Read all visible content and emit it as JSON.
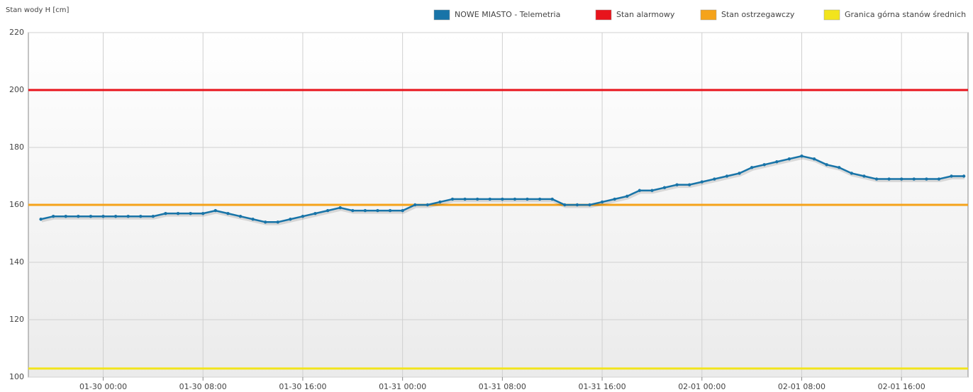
{
  "chart_data": {
    "type": "line",
    "y_label": "Stan wody H [cm]",
    "ylim": [
      100,
      220
    ],
    "yticks": [
      100,
      120,
      140,
      160,
      180,
      200,
      220
    ],
    "xlim": [
      "01-29 18:00",
      "02-01 21:20"
    ],
    "xticks": [
      "01-30 00:00",
      "01-30 08:00",
      "01-30 16:00",
      "01-31 00:00",
      "01-31 08:00",
      "01-31 16:00",
      "02-01 00:00",
      "02-01 08:00",
      "02-01 16:00"
    ],
    "grid": true,
    "legend": "top-right",
    "x": [
      "01-29 19:00",
      "01-29 20:00",
      "01-29 21:00",
      "01-29 22:00",
      "01-29 23:00",
      "01-30 00:00",
      "01-30 01:00",
      "01-30 02:00",
      "01-30 03:00",
      "01-30 04:00",
      "01-30 05:00",
      "01-30 06:00",
      "01-30 07:00",
      "01-30 08:00",
      "01-30 09:00",
      "01-30 10:00",
      "01-30 11:00",
      "01-30 12:00",
      "01-30 13:00",
      "01-30 14:00",
      "01-30 15:00",
      "01-30 16:00",
      "01-30 17:00",
      "01-30 18:00",
      "01-30 19:00",
      "01-30 20:00",
      "01-30 21:00",
      "01-30 22:00",
      "01-30 23:00",
      "01-31 00:00",
      "01-31 01:00",
      "01-31 02:00",
      "01-31 03:00",
      "01-31 04:00",
      "01-31 05:00",
      "01-31 06:00",
      "01-31 07:00",
      "01-31 08:00",
      "01-31 09:00",
      "01-31 10:00",
      "01-31 11:00",
      "01-31 12:00",
      "01-31 13:00",
      "01-31 14:00",
      "01-31 15:00",
      "01-31 16:00",
      "01-31 17:00",
      "01-31 18:00",
      "01-31 19:00",
      "01-31 20:00",
      "01-31 21:00",
      "01-31 22:00",
      "01-31 23:00",
      "02-01 00:00",
      "02-01 01:00",
      "02-01 02:00",
      "02-01 03:00",
      "02-01 04:00",
      "02-01 05:00",
      "02-01 06:00",
      "02-01 07:00",
      "02-01 08:00",
      "02-01 09:00",
      "02-01 10:00",
      "02-01 11:00",
      "02-01 12:00",
      "02-01 13:00",
      "02-01 14:00",
      "02-01 15:00",
      "02-01 16:00",
      "02-01 17:00",
      "02-01 18:00",
      "02-01 19:00",
      "02-01 20:00",
      "02-01 21:00"
    ],
    "series": [
      {
        "name": "NOWE MIASTO - Telemetria",
        "color": "#1874a8",
        "values": [
          155,
          156,
          156,
          156,
          156,
          156,
          156,
          156,
          156,
          156,
          157,
          157,
          157,
          157,
          158,
          157,
          156,
          155,
          154,
          154,
          155,
          156,
          157,
          158,
          159,
          158,
          158,
          158,
          158,
          158,
          160,
          160,
          161,
          162,
          162,
          162,
          162,
          162,
          162,
          162,
          162,
          162,
          160,
          160,
          160,
          161,
          162,
          163,
          165,
          165,
          166,
          167,
          167,
          168,
          169,
          170,
          171,
          173,
          174,
          175,
          176,
          177,
          176,
          174,
          173,
          171,
          170,
          169,
          169,
          169,
          169,
          169,
          169,
          170,
          170
        ]
      },
      {
        "name": "Stan alarmowy",
        "color": "#e8141c",
        "value": 200
      },
      {
        "name": "Stan ostrzegawczy",
        "color": "#f5a31a",
        "value": 160
      },
      {
        "name": "Granica górna stanów średnich",
        "color": "#f2e41c",
        "value": 103
      }
    ]
  }
}
